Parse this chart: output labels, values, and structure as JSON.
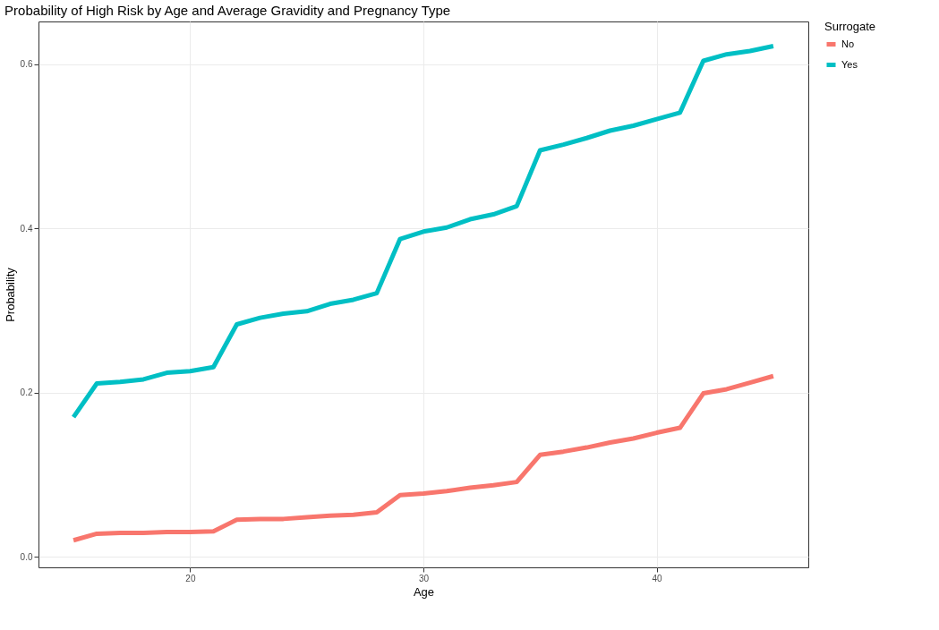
{
  "chart_data": {
    "type": "line",
    "title": "Probability of High Risk by Age and Average Gravidity and Pregnancy Type",
    "xlabel": "Age",
    "ylabel": "Probability",
    "legend_title": "Surrogate",
    "x": [
      15,
      16,
      17,
      18,
      19,
      20,
      21,
      22,
      23,
      24,
      25,
      26,
      27,
      28,
      29,
      30,
      31,
      32,
      33,
      34,
      35,
      36,
      37,
      38,
      39,
      40,
      41,
      42,
      43,
      44,
      45
    ],
    "series": [
      {
        "name": "No",
        "color": "#f8766d",
        "values": [
          0.02,
          0.028,
          0.029,
          0.029,
          0.03,
          0.03,
          0.031,
          0.045,
          0.046,
          0.046,
          0.048,
          0.05,
          0.051,
          0.054,
          0.075,
          0.077,
          0.08,
          0.084,
          0.087,
          0.091,
          0.124,
          0.128,
          0.133,
          0.139,
          0.144,
          0.151,
          0.157,
          0.199,
          0.204,
          0.212,
          0.22
        ]
      },
      {
        "name": "Yes",
        "color": "#00bfc4",
        "values": [
          0.17,
          0.211,
          0.213,
          0.216,
          0.224,
          0.226,
          0.231,
          0.283,
          0.291,
          0.296,
          0.299,
          0.308,
          0.313,
          0.321,
          0.387,
          0.396,
          0.401,
          0.411,
          0.417,
          0.427,
          0.495,
          0.502,
          0.51,
          0.519,
          0.525,
          0.533,
          0.541,
          0.604,
          0.612,
          0.616,
          0.622
        ]
      }
    ],
    "xlim": [
      13.5,
      46.5
    ],
    "xticks": [
      20,
      30,
      40
    ],
    "ylim": [
      -0.013,
      0.652
    ],
    "yticks": [
      {
        "value": 0,
        "label": "0.0"
      },
      0.2,
      0.4,
      0.6
    ],
    "grid": true,
    "legend": "right",
    "marker": "none",
    "line_style": "solid"
  }
}
